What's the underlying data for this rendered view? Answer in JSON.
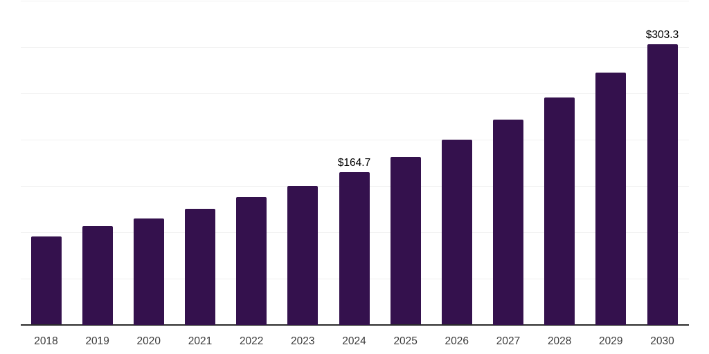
{
  "chart_data": {
    "type": "bar",
    "title": "",
    "xlabel": "",
    "ylabel": "",
    "categories": [
      "2018",
      "2019",
      "2020",
      "2021",
      "2022",
      "2023",
      "2024",
      "2025",
      "2026",
      "2027",
      "2028",
      "2029",
      "2030"
    ],
    "values": [
      95.2,
      106.8,
      114.7,
      125.1,
      137.8,
      149.8,
      164.7,
      181.1,
      199.8,
      221.5,
      245.4,
      272.3,
      303.3
    ],
    "data_labels": {
      "2024": "$164.7",
      "2030": "$303.3"
    },
    "ylim": [
      0,
      350
    ],
    "gridline_step": 50,
    "grid": "horizontal",
    "legend": "none",
    "bar_color": "#34114D",
    "gridline_color": "#f0f0f0",
    "axis_line_color": "#2b2b2b",
    "tick_label_color": "#3b3b3b",
    "data_label_color": "#000000",
    "background_color": "#ffffff"
  }
}
